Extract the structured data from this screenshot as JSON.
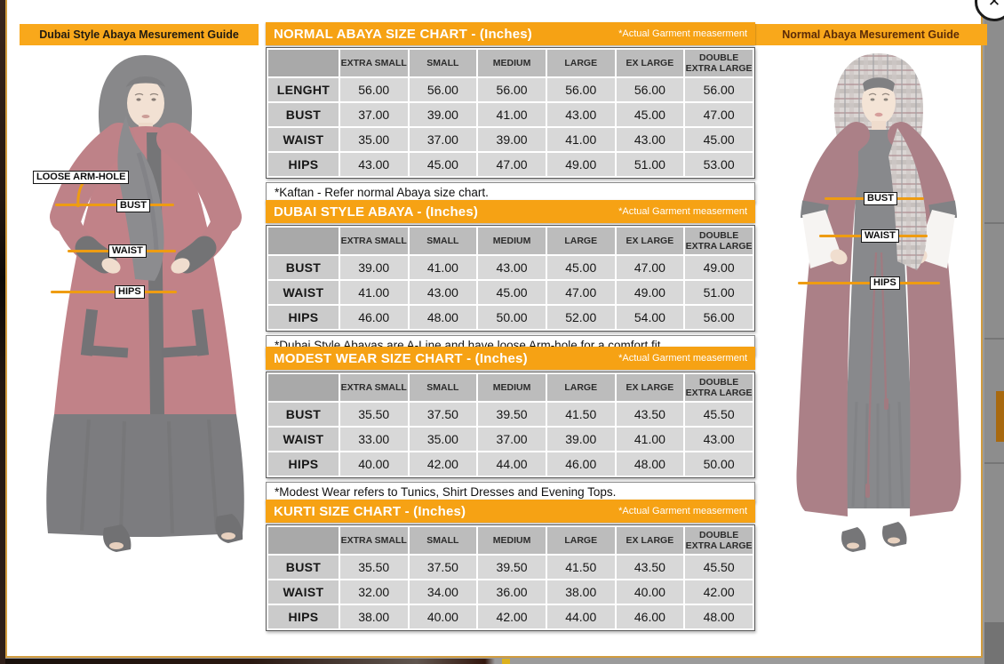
{
  "window": {
    "close_icon": "✕"
  },
  "banners": {
    "left": "Dubai Style Abaya Mesurement Guide",
    "right": "Normal Abaya Mesurement Guide"
  },
  "figure_labels": {
    "left": {
      "arm_hole": "LOOSE ARM-HOLE",
      "bust": "BUST",
      "waist": "WAIST",
      "hips": "HIPS"
    },
    "right": {
      "bust": "BUST",
      "waist": "WAIST",
      "hips": "HIPS"
    }
  },
  "size_columns": [
    "EXTRA SMALL",
    "SMALL",
    "MEDIUM",
    "LARGE",
    "EX LARGE",
    "DOUBLE EXTRA LARGE"
  ],
  "tables": [
    {
      "title": "NORMAL ABAYA SIZE CHART - (Inches)",
      "tag": "*Actual Garment measerment",
      "rows": [
        {
          "label": "LENGHT",
          "values": [
            "56.00",
            "56.00",
            "56.00",
            "56.00",
            "56.00",
            "56.00"
          ]
        },
        {
          "label": "BUST",
          "values": [
            "37.00",
            "39.00",
            "41.00",
            "43.00",
            "45.00",
            "47.00"
          ]
        },
        {
          "label": "WAIST",
          "values": [
            "35.00",
            "37.00",
            "39.00",
            "41.00",
            "43.00",
            "45.00"
          ]
        },
        {
          "label": "HIPS",
          "values": [
            "43.00",
            "45.00",
            "47.00",
            "49.00",
            "51.00",
            "53.00"
          ]
        }
      ],
      "note": "*Kaftan - Refer normal Abaya size chart."
    },
    {
      "title": "DUBAI STYLE ABAYA - (Inches)",
      "tag": "*Actual Garment measerment",
      "rows": [
        {
          "label": "BUST",
          "values": [
            "39.00",
            "41.00",
            "43.00",
            "45.00",
            "47.00",
            "49.00"
          ]
        },
        {
          "label": "WAIST",
          "values": [
            "41.00",
            "43.00",
            "45.00",
            "47.00",
            "49.00",
            "51.00"
          ]
        },
        {
          "label": "HIPS",
          "values": [
            "46.00",
            "48.00",
            "50.00",
            "52.00",
            "54.00",
            "56.00"
          ]
        }
      ],
      "note": "*Dubai Style Abayas are A-Line and have loose Arm-hole for a comfort fit."
    },
    {
      "title": "MODEST WEAR SIZE CHART - (Inches)",
      "tag": "*Actual Garment measerment",
      "rows": [
        {
          "label": "BUST",
          "values": [
            "35.50",
            "37.50",
            "39.50",
            "41.50",
            "43.50",
            "45.50"
          ]
        },
        {
          "label": "WAIST",
          "values": [
            "33.00",
            "35.00",
            "37.00",
            "39.00",
            "41.00",
            "43.00"
          ]
        },
        {
          "label": "HIPS",
          "values": [
            "40.00",
            "42.00",
            "44.00",
            "46.00",
            "48.00",
            "50.00"
          ]
        }
      ],
      "note": "*Modest Wear refers to Tunics, Shirt Dresses and Evening Tops."
    },
    {
      "title": "KURTI SIZE CHART - (Inches)",
      "tag": "*Actual Garment measerment",
      "rows": [
        {
          "label": "BUST",
          "values": [
            "35.50",
            "37.50",
            "39.50",
            "41.50",
            "43.50",
            "45.50"
          ]
        },
        {
          "label": "WAIST",
          "values": [
            "32.00",
            "34.00",
            "36.00",
            "38.00",
            "40.00",
            "42.00"
          ]
        },
        {
          "label": "HIPS",
          "values": [
            "38.00",
            "40.00",
            "42.00",
            "44.00",
            "46.00",
            "48.00"
          ]
        }
      ],
      "note": ""
    }
  ],
  "colors": {
    "accent_orange": "#F6A214",
    "banner_orange": "#F9A81B",
    "measure_line": "#EE9C12",
    "header_grey": "#BCBCBC",
    "cell_grey": "#D8D8D8"
  }
}
